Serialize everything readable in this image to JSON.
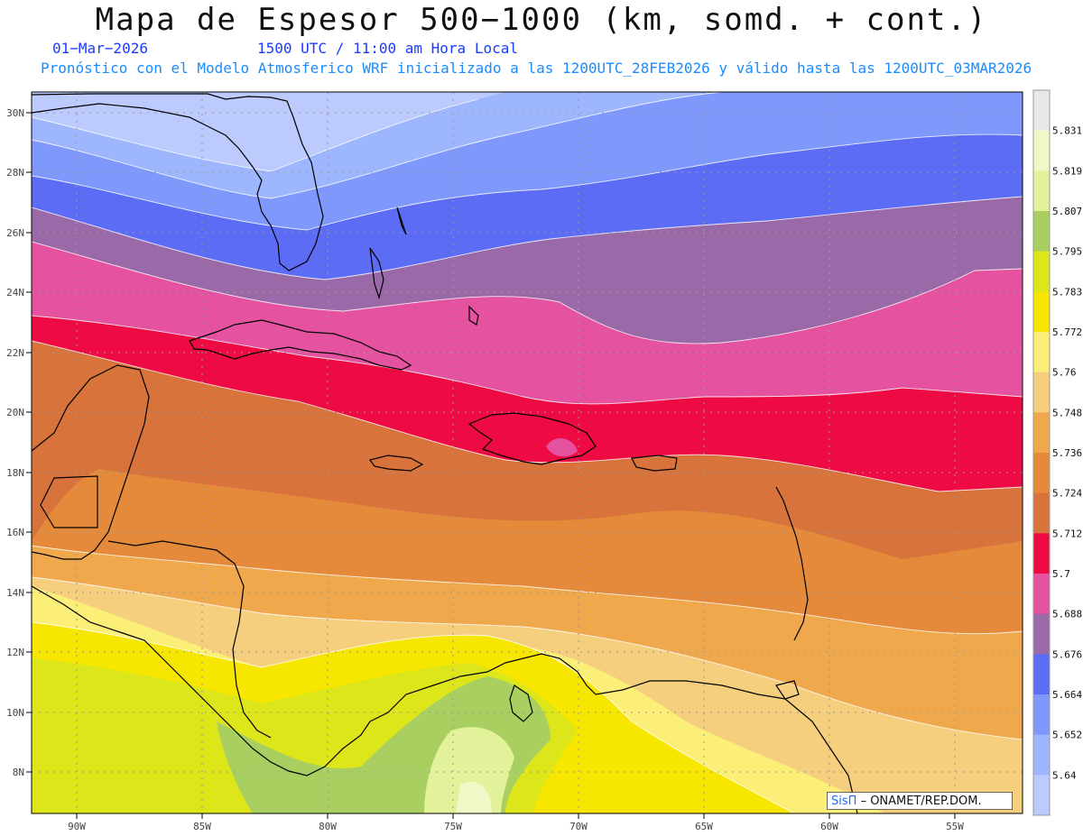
{
  "header": {
    "title": "Mapa de Espesor 500−1000 (km, somd. + cont.)",
    "date": "01−Mar−2026",
    "time": "1500 UTC / 11:00 am Hora Local",
    "forecast": "Pronóstico con el Modelo Atmosferico WRF inicializado a las 1200UTC_28FEB2026 y válido hasta las  1200UTC_03MAR2026"
  },
  "axes": {
    "lat_labels": [
      "30N",
      "28N",
      "26N",
      "24N",
      "22N",
      "20N",
      "18N",
      "16N",
      "14N",
      "12N",
      "10N",
      "8N"
    ],
    "lon_labels": [
      "90W",
      "85W",
      "80W",
      "75W",
      "70W",
      "65W",
      "60W",
      "55W"
    ]
  },
  "colorbar": {
    "labels": [
      "5.831",
      "5.819",
      "5.807",
      "5.795",
      "5.783",
      "5.772",
      "5.76",
      "5.748",
      "5.736",
      "5.724",
      "5.712",
      "5.7",
      "5.688",
      "5.676",
      "5.664",
      "5.652",
      "5.64"
    ],
    "colors": [
      "#e8e8e8",
      "#f2f7c8",
      "#e2f29a",
      "#a8cf60",
      "#dce61a",
      "#f7e600",
      "#fcef78",
      "#f5cf7e",
      "#f0a84c",
      "#e48a3a",
      "#d8733c",
      "#ee0a42",
      "#e553a0",
      "#9a6aa8",
      "#5c6cf5",
      "#7f98fc",
      "#9eb6fd",
      "#bccafd"
    ]
  },
  "credit": {
    "sis": "SisΠ",
    "text": "– ONAMET/REP.DOM."
  }
}
